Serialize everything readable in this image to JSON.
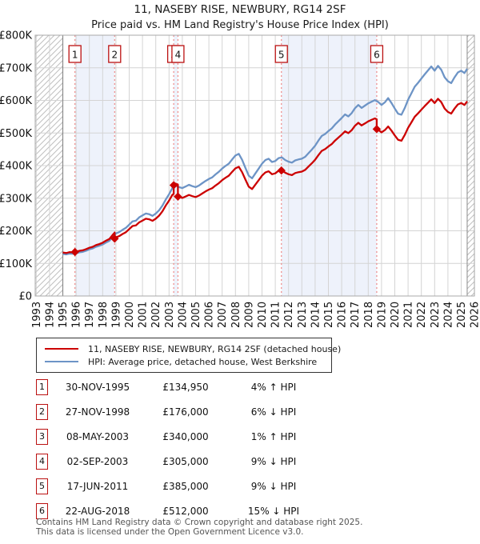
{
  "page": {
    "title": "11, NASEBY RISE, NEWBURY, RG14 2SF",
    "subtitle": "Price paid vs. HM Land Registry's House Price Index (HPI)"
  },
  "legend": {
    "items": [
      {
        "label": "11, NASEBY RISE, NEWBURY, RG14 2SF (detached house)",
        "color": "#cc0000"
      },
      {
        "label": "HPI: Average price, detached house, West Berkshire",
        "color": "#6d94c6"
      }
    ]
  },
  "sales": [
    {
      "n": "1",
      "date": "30-NOV-1995",
      "year": 1995.915,
      "price": 134950,
      "price_label": "£134,950",
      "hpi_rel": "4% ↑ HPI"
    },
    {
      "n": "2",
      "date": "27-NOV-1998",
      "year": 1998.904,
      "price": 176000,
      "price_label": "£176,000",
      "hpi_rel": "6% ↓ HPI"
    },
    {
      "n": "3",
      "date": "08-MAY-2003",
      "year": 2003.35,
      "price": 340000,
      "price_label": "£340,000",
      "hpi_rel": "1% ↑ HPI"
    },
    {
      "n": "4",
      "date": "02-SEP-2003",
      "year": 2003.67,
      "price": 305000,
      "price_label": "£305,000",
      "hpi_rel": "9% ↓ HPI"
    },
    {
      "n": "5",
      "date": "17-JUN-2011",
      "year": 2011.46,
      "price": 385000,
      "price_label": "£385,000",
      "hpi_rel": "9% ↓ HPI"
    },
    {
      "n": "6",
      "date": "22-AUG-2018",
      "year": 2018.64,
      "price": 512000,
      "price_label": "£512,000",
      "hpi_rel": "15% ↓ HPI"
    }
  ],
  "footer": {
    "line1": "Contains HM Land Registry data © Crown copyright and database right 2025.",
    "line2": "This data is licensed under the Open Government Licence v3.0."
  },
  "chart_data": {
    "type": "line",
    "title": "11, NASEBY RISE, NEWBURY, RG14 2SF",
    "subtitle": "Price paid vs. HM Land Registry's House Price Index (HPI)",
    "x_axis": {
      "min": 1993,
      "max": 2026,
      "ticks": [
        1993,
        1994,
        1995,
        1996,
        1997,
        1998,
        1999,
        2000,
        2001,
        2002,
        2003,
        2004,
        2005,
        2006,
        2007,
        2008,
        2009,
        2010,
        2011,
        2012,
        2013,
        2014,
        2015,
        2016,
        2017,
        2018,
        2019,
        2020,
        2021,
        2022,
        2023,
        2024,
        2025,
        2026
      ]
    },
    "y_axis": {
      "min": 0,
      "max": 800000,
      "tick_step": 100000,
      "tick_labels": [
        "£0",
        "£100K",
        "£200K",
        "£300K",
        "£400K",
        "£500K",
        "£600K",
        "£700K",
        "£800K"
      ]
    },
    "grid": true,
    "legend_position": "below",
    "data_start_year": 1995.0,
    "data_end_year": 2025.45,
    "shaded_band_sale_pairs": [
      [
        0,
        1
      ],
      [
        2,
        3
      ],
      [
        4,
        5
      ]
    ],
    "colors": {
      "price_paid": "#cc0000",
      "hpi": "#6d94c6",
      "sale_line": "#ee8888",
      "band": "#eef2fb",
      "grid": "#d4d4d4",
      "border": "#a8a8a8",
      "hatch": "#bfbfbf",
      "boundary": "#8a8a8a"
    },
    "series": [
      {
        "name": "11, NASEBY RISE, NEWBURY, RG14 2SF (detached house)",
        "color": "#cc0000",
        "derivation": "HPI series rescaled through each successive sale price; jumps at sales"
      },
      {
        "name": "HPI: Average price, detached house, West Berkshire",
        "color": "#6d94c6",
        "points": [
          [
            1995.0,
            129000
          ],
          [
            1995.25,
            127500
          ],
          [
            1995.5,
            130000
          ],
          [
            1995.75,
            129500
          ],
          [
            1996.0,
            131000
          ],
          [
            1996.25,
            134000
          ],
          [
            1996.5,
            135500
          ],
          [
            1996.75,
            139000
          ],
          [
            1997.0,
            143000
          ],
          [
            1997.25,
            146000
          ],
          [
            1997.5,
            151000
          ],
          [
            1997.75,
            154000
          ],
          [
            1998.0,
            158000
          ],
          [
            1998.25,
            164000
          ],
          [
            1998.5,
            169000
          ],
          [
            1998.75,
            181000
          ],
          [
            1999.0,
            192000
          ],
          [
            1999.25,
            196000
          ],
          [
            1999.5,
            203000
          ],
          [
            1999.75,
            209000
          ],
          [
            2000.0,
            219000
          ],
          [
            2000.25,
            229000
          ],
          [
            2000.5,
            231000
          ],
          [
            2000.75,
            241000
          ],
          [
            2001.0,
            247000
          ],
          [
            2001.25,
            253000
          ],
          [
            2001.5,
            251000
          ],
          [
            2001.75,
            246000
          ],
          [
            2002.0,
            253000
          ],
          [
            2002.25,
            263000
          ],
          [
            2002.5,
            277000
          ],
          [
            2002.75,
            296000
          ],
          [
            2003.0,
            312000
          ],
          [
            2003.25,
            331000
          ],
          [
            2003.5,
            339000
          ],
          [
            2003.75,
            334000
          ],
          [
            2004.0,
            331000
          ],
          [
            2004.25,
            336000
          ],
          [
            2004.5,
            341000
          ],
          [
            2004.75,
            337000
          ],
          [
            2005.0,
            334000
          ],
          [
            2005.25,
            339000
          ],
          [
            2005.5,
            346000
          ],
          [
            2005.75,
            353000
          ],
          [
            2006.0,
            359000
          ],
          [
            2006.25,
            364000
          ],
          [
            2006.5,
            373000
          ],
          [
            2006.75,
            381000
          ],
          [
            2007.0,
            391000
          ],
          [
            2007.25,
            399000
          ],
          [
            2007.5,
            406000
          ],
          [
            2007.75,
            419000
          ],
          [
            2008.0,
            431000
          ],
          [
            2008.25,
            436000
          ],
          [
            2008.5,
            418000
          ],
          [
            2008.75,
            393000
          ],
          [
            2009.0,
            369000
          ],
          [
            2009.25,
            361000
          ],
          [
            2009.5,
            376000
          ],
          [
            2009.75,
            391000
          ],
          [
            2010.0,
            406000
          ],
          [
            2010.25,
            417000
          ],
          [
            2010.5,
            421000
          ],
          [
            2010.75,
            411000
          ],
          [
            2011.0,
            414000
          ],
          [
            2011.25,
            423000
          ],
          [
            2011.5,
            425000
          ],
          [
            2011.75,
            417000
          ],
          [
            2012.0,
            412000
          ],
          [
            2012.25,
            409000
          ],
          [
            2012.5,
            416000
          ],
          [
            2012.75,
            419000
          ],
          [
            2013.0,
            421000
          ],
          [
            2013.25,
            427000
          ],
          [
            2013.5,
            438000
          ],
          [
            2013.75,
            449000
          ],
          [
            2014.0,
            461000
          ],
          [
            2014.25,
            477000
          ],
          [
            2014.5,
            491000
          ],
          [
            2014.75,
            497000
          ],
          [
            2015.0,
            506000
          ],
          [
            2015.25,
            514000
          ],
          [
            2015.5,
            526000
          ],
          [
            2015.75,
            536000
          ],
          [
            2016.0,
            546000
          ],
          [
            2016.25,
            557000
          ],
          [
            2016.5,
            551000
          ],
          [
            2016.75,
            561000
          ],
          [
            2017.0,
            576000
          ],
          [
            2017.25,
            586000
          ],
          [
            2017.5,
            577000
          ],
          [
            2017.75,
            584000
          ],
          [
            2018.0,
            591000
          ],
          [
            2018.25,
            596000
          ],
          [
            2018.5,
            601000
          ],
          [
            2018.75,
            595000
          ],
          [
            2019.0,
            586000
          ],
          [
            2019.25,
            594000
          ],
          [
            2019.5,
            607000
          ],
          [
            2019.75,
            592000
          ],
          [
            2020.0,
            575000
          ],
          [
            2020.25,
            559000
          ],
          [
            2020.5,
            556000
          ],
          [
            2020.75,
            577000
          ],
          [
            2021.0,
            602000
          ],
          [
            2021.25,
            622000
          ],
          [
            2021.5,
            642000
          ],
          [
            2021.75,
            654000
          ],
          [
            2022.0,
            667000
          ],
          [
            2022.25,
            680000
          ],
          [
            2022.5,
            692000
          ],
          [
            2022.75,
            704000
          ],
          [
            2023.0,
            691000
          ],
          [
            2023.25,
            706000
          ],
          [
            2023.5,
            694000
          ],
          [
            2023.75,
            671000
          ],
          [
            2024.0,
            659000
          ],
          [
            2024.25,
            653000
          ],
          [
            2024.5,
            671000
          ],
          [
            2024.75,
            686000
          ],
          [
            2025.0,
            691000
          ],
          [
            2025.25,
            684000
          ],
          [
            2025.45,
            697000
          ]
        ]
      }
    ]
  }
}
